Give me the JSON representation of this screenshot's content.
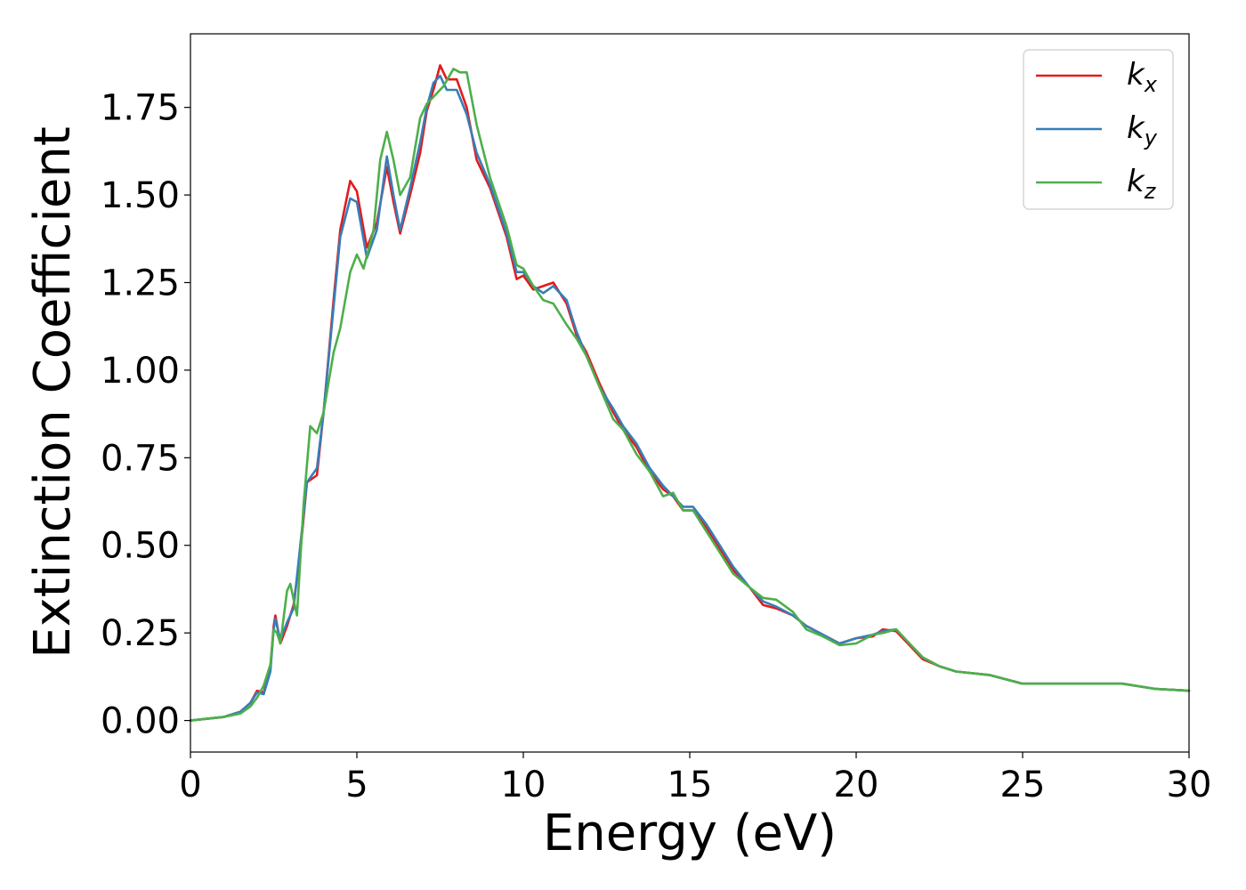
{
  "chart_data": {
    "type": "line",
    "title": "",
    "xlabel": "Energy (eV)",
    "ylabel": "Extinction Coefficient",
    "xlim": [
      0,
      30
    ],
    "ylim": [
      -0.09,
      1.96
    ],
    "xticks": [
      0,
      5,
      10,
      15,
      20,
      25,
      30
    ],
    "xtick_labels": [
      "0",
      "5",
      "10",
      "15",
      "20",
      "25",
      "30"
    ],
    "yticks": [
      0,
      0.25,
      0.5,
      0.75,
      1.0,
      1.25,
      1.5,
      1.75
    ],
    "ytick_labels": [
      "0.00",
      "0.25",
      "0.50",
      "0.75",
      "1.00",
      "1.25",
      "1.50",
      "1.75"
    ],
    "grid": false,
    "legend_position": "top-right",
    "series": [
      {
        "name": "k_x",
        "label_base": "k",
        "label_sub": "x",
        "color": "#e41a1c",
        "points": [
          [
            0,
            0
          ],
          [
            1,
            0.01
          ],
          [
            1.5,
            0.025
          ],
          [
            1.8,
            0.05
          ],
          [
            2.0,
            0.085
          ],
          [
            2.2,
            0.08
          ],
          [
            2.4,
            0.15
          ],
          [
            2.5,
            0.27
          ],
          [
            2.55,
            0.3
          ],
          [
            2.7,
            0.22
          ],
          [
            2.9,
            0.27
          ],
          [
            3.1,
            0.33
          ],
          [
            3.3,
            0.48
          ],
          [
            3.5,
            0.68
          ],
          [
            3.8,
            0.7
          ],
          [
            4.0,
            0.88
          ],
          [
            4.3,
            1.2
          ],
          [
            4.5,
            1.4
          ],
          [
            4.8,
            1.54
          ],
          [
            5.0,
            1.51
          ],
          [
            5.3,
            1.35
          ],
          [
            5.6,
            1.42
          ],
          [
            5.9,
            1.58
          ],
          [
            6.1,
            1.48
          ],
          [
            6.3,
            1.39
          ],
          [
            6.6,
            1.5
          ],
          [
            6.9,
            1.62
          ],
          [
            7.1,
            1.74
          ],
          [
            7.3,
            1.8
          ],
          [
            7.5,
            1.87
          ],
          [
            7.7,
            1.83
          ],
          [
            8.0,
            1.83
          ],
          [
            8.3,
            1.75
          ],
          [
            8.6,
            1.6
          ],
          [
            9.0,
            1.52
          ],
          [
            9.5,
            1.38
          ],
          [
            9.8,
            1.26
          ],
          [
            10.0,
            1.27
          ],
          [
            10.3,
            1.23
          ],
          [
            10.6,
            1.24
          ],
          [
            10.9,
            1.25
          ],
          [
            11.3,
            1.19
          ],
          [
            11.6,
            1.1
          ],
          [
            11.9,
            1.05
          ],
          [
            12.3,
            0.96
          ],
          [
            12.7,
            0.88
          ],
          [
            13.0,
            0.83
          ],
          [
            13.4,
            0.78
          ],
          [
            13.8,
            0.71
          ],
          [
            14.2,
            0.66
          ],
          [
            14.5,
            0.64
          ],
          [
            14.8,
            0.6
          ],
          [
            15.1,
            0.6
          ],
          [
            15.5,
            0.55
          ],
          [
            15.9,
            0.49
          ],
          [
            16.3,
            0.43
          ],
          [
            16.8,
            0.38
          ],
          [
            17.2,
            0.33
          ],
          [
            17.6,
            0.32
          ],
          [
            18.1,
            0.3
          ],
          [
            18.5,
            0.27
          ],
          [
            19.0,
            0.245
          ],
          [
            19.5,
            0.22
          ],
          [
            20.0,
            0.235
          ],
          [
            20.5,
            0.24
          ],
          [
            20.8,
            0.26
          ],
          [
            21.2,
            0.255
          ],
          [
            21.6,
            0.215
          ],
          [
            22.0,
            0.175
          ],
          [
            22.5,
            0.155
          ],
          [
            23.0,
            0.14
          ],
          [
            24.0,
            0.13
          ],
          [
            25.0,
            0.105
          ],
          [
            26.0,
            0.105
          ],
          [
            27.0,
            0.105
          ],
          [
            28.0,
            0.105
          ],
          [
            29.0,
            0.09
          ],
          [
            30.0,
            0.085
          ]
        ]
      },
      {
        "name": "k_y",
        "label_base": "k",
        "label_sub": "y",
        "color": "#377eb8",
        "points": [
          [
            0,
            0
          ],
          [
            1,
            0.01
          ],
          [
            1.5,
            0.025
          ],
          [
            1.8,
            0.05
          ],
          [
            2.0,
            0.08
          ],
          [
            2.2,
            0.075
          ],
          [
            2.4,
            0.14
          ],
          [
            2.5,
            0.26
          ],
          [
            2.55,
            0.29
          ],
          [
            2.7,
            0.23
          ],
          [
            2.9,
            0.28
          ],
          [
            3.1,
            0.32
          ],
          [
            3.3,
            0.5
          ],
          [
            3.5,
            0.68
          ],
          [
            3.8,
            0.72
          ],
          [
            4.0,
            0.88
          ],
          [
            4.3,
            1.18
          ],
          [
            4.5,
            1.38
          ],
          [
            4.8,
            1.49
          ],
          [
            5.0,
            1.48
          ],
          [
            5.3,
            1.32
          ],
          [
            5.6,
            1.4
          ],
          [
            5.9,
            1.61
          ],
          [
            6.1,
            1.5
          ],
          [
            6.3,
            1.4
          ],
          [
            6.6,
            1.52
          ],
          [
            6.9,
            1.65
          ],
          [
            7.1,
            1.75
          ],
          [
            7.3,
            1.82
          ],
          [
            7.5,
            1.84
          ],
          [
            7.7,
            1.8
          ],
          [
            8.0,
            1.8
          ],
          [
            8.3,
            1.73
          ],
          [
            8.6,
            1.62
          ],
          [
            9.0,
            1.53
          ],
          [
            9.5,
            1.39
          ],
          [
            9.8,
            1.28
          ],
          [
            10.0,
            1.28
          ],
          [
            10.3,
            1.24
          ],
          [
            10.6,
            1.22
          ],
          [
            10.9,
            1.24
          ],
          [
            11.3,
            1.2
          ],
          [
            11.6,
            1.11
          ],
          [
            11.9,
            1.04
          ],
          [
            12.3,
            0.95
          ],
          [
            12.7,
            0.89
          ],
          [
            13.0,
            0.84
          ],
          [
            13.4,
            0.79
          ],
          [
            13.8,
            0.72
          ],
          [
            14.2,
            0.67
          ],
          [
            14.5,
            0.64
          ],
          [
            14.8,
            0.61
          ],
          [
            15.1,
            0.61
          ],
          [
            15.5,
            0.56
          ],
          [
            15.9,
            0.5
          ],
          [
            16.3,
            0.44
          ],
          [
            16.8,
            0.38
          ],
          [
            17.2,
            0.34
          ],
          [
            17.6,
            0.325
          ],
          [
            18.1,
            0.3
          ],
          [
            18.5,
            0.27
          ],
          [
            19.0,
            0.245
          ],
          [
            19.5,
            0.22
          ],
          [
            20.0,
            0.235
          ],
          [
            20.5,
            0.245
          ],
          [
            20.8,
            0.255
          ],
          [
            21.2,
            0.26
          ],
          [
            21.6,
            0.22
          ],
          [
            22.0,
            0.18
          ],
          [
            22.5,
            0.155
          ],
          [
            23.0,
            0.14
          ],
          [
            24.0,
            0.13
          ],
          [
            25.0,
            0.105
          ],
          [
            26.0,
            0.105
          ],
          [
            27.0,
            0.105
          ],
          [
            28.0,
            0.105
          ],
          [
            29.0,
            0.09
          ],
          [
            30.0,
            0.085
          ]
        ]
      },
      {
        "name": "k_z",
        "label_base": "k",
        "label_sub": "z",
        "color": "#4daf4a",
        "points": [
          [
            0,
            0
          ],
          [
            1,
            0.01
          ],
          [
            1.5,
            0.02
          ],
          [
            1.8,
            0.04
          ],
          [
            2.0,
            0.065
          ],
          [
            2.2,
            0.1
          ],
          [
            2.4,
            0.16
          ],
          [
            2.5,
            0.26
          ],
          [
            2.6,
            0.25
          ],
          [
            2.7,
            0.22
          ],
          [
            2.9,
            0.37
          ],
          [
            3.0,
            0.39
          ],
          [
            3.2,
            0.3
          ],
          [
            3.4,
            0.62
          ],
          [
            3.6,
            0.84
          ],
          [
            3.8,
            0.82
          ],
          [
            4.0,
            0.88
          ],
          [
            4.3,
            1.05
          ],
          [
            4.5,
            1.12
          ],
          [
            4.8,
            1.28
          ],
          [
            5.0,
            1.33
          ],
          [
            5.2,
            1.29
          ],
          [
            5.5,
            1.4
          ],
          [
            5.7,
            1.6
          ],
          [
            5.9,
            1.68
          ],
          [
            6.1,
            1.6
          ],
          [
            6.3,
            1.5
          ],
          [
            6.6,
            1.55
          ],
          [
            6.9,
            1.72
          ],
          [
            7.1,
            1.76
          ],
          [
            7.3,
            1.78
          ],
          [
            7.6,
            1.81
          ],
          [
            7.9,
            1.86
          ],
          [
            8.1,
            1.85
          ],
          [
            8.3,
            1.85
          ],
          [
            8.6,
            1.7
          ],
          [
            9.0,
            1.55
          ],
          [
            9.5,
            1.41
          ],
          [
            9.8,
            1.3
          ],
          [
            10.0,
            1.29
          ],
          [
            10.3,
            1.24
          ],
          [
            10.6,
            1.2
          ],
          [
            10.9,
            1.19
          ],
          [
            11.3,
            1.13
          ],
          [
            11.6,
            1.09
          ],
          [
            11.9,
            1.04
          ],
          [
            12.3,
            0.95
          ],
          [
            12.7,
            0.86
          ],
          [
            13.0,
            0.83
          ],
          [
            13.4,
            0.76
          ],
          [
            13.8,
            0.71
          ],
          [
            14.2,
            0.64
          ],
          [
            14.5,
            0.65
          ],
          [
            14.8,
            0.6
          ],
          [
            15.1,
            0.6
          ],
          [
            15.5,
            0.54
          ],
          [
            15.9,
            0.48
          ],
          [
            16.3,
            0.42
          ],
          [
            16.8,
            0.38
          ],
          [
            17.2,
            0.35
          ],
          [
            17.6,
            0.345
          ],
          [
            18.1,
            0.31
          ],
          [
            18.5,
            0.26
          ],
          [
            19.0,
            0.24
          ],
          [
            19.5,
            0.215
          ],
          [
            20.0,
            0.22
          ],
          [
            20.5,
            0.245
          ],
          [
            20.8,
            0.25
          ],
          [
            21.2,
            0.26
          ],
          [
            21.6,
            0.22
          ],
          [
            22.0,
            0.18
          ],
          [
            22.5,
            0.155
          ],
          [
            23.0,
            0.14
          ],
          [
            24.0,
            0.13
          ],
          [
            25.0,
            0.105
          ],
          [
            26.0,
            0.105
          ],
          [
            27.0,
            0.105
          ],
          [
            28.0,
            0.105
          ],
          [
            29.0,
            0.09
          ],
          [
            30.0,
            0.085
          ]
        ]
      }
    ]
  }
}
